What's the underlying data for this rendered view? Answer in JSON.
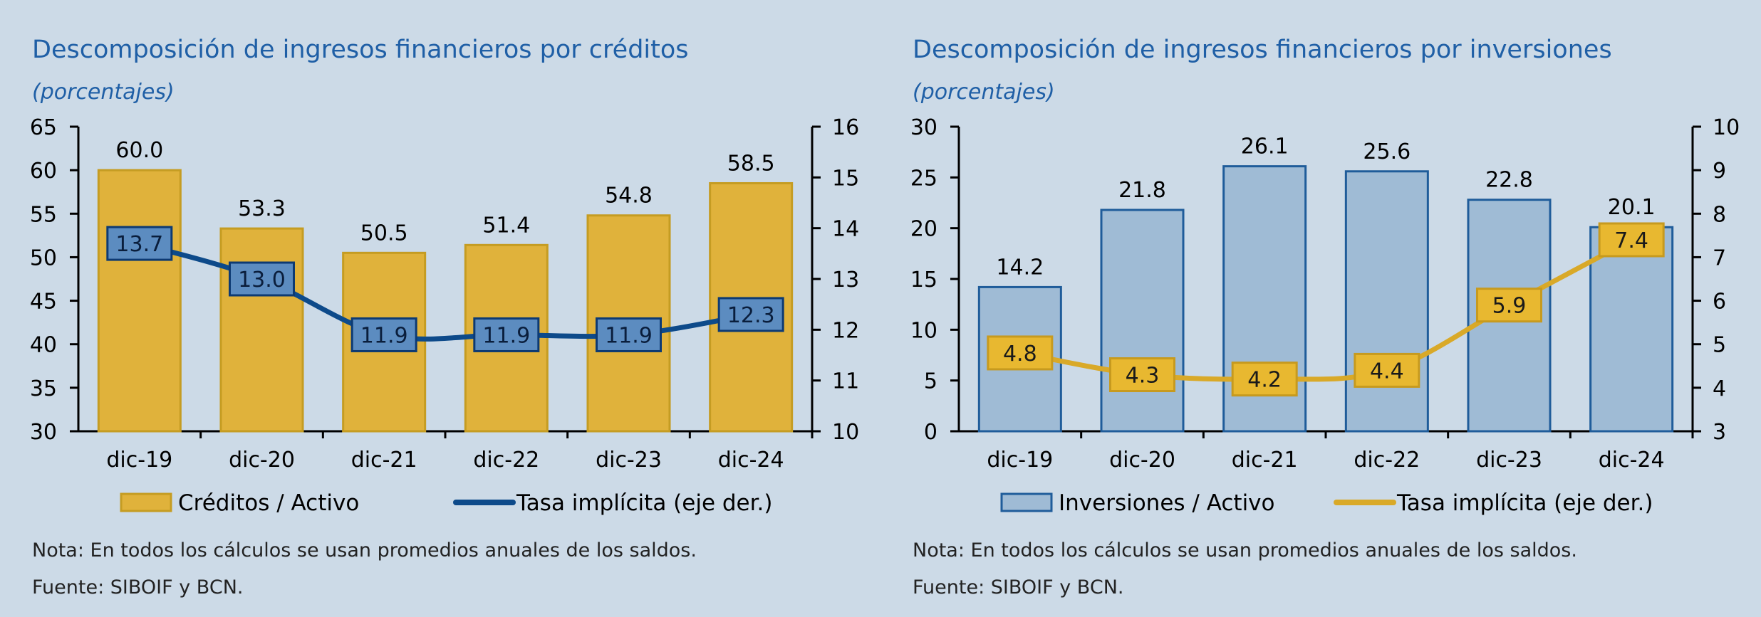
{
  "charts": [
    {
      "title": "Descomposición de ingresos financieros por créditos",
      "subtitle": "(porcentajes)",
      "note": "Nota: En todos los cálculos se usan promedios anuales de los saldos.",
      "source": "Fuente: SIBOIF y BCN.",
      "bar_color": "#e0b23b",
      "bar_stroke": "#c59c22",
      "line_color": "#0d4a8a",
      "label_box_fill": "#5c8cc0",
      "label_box_stroke": "#0d3a73",
      "label_text_color": "#0a1e3c"
    },
    {
      "title": "Descomposición de ingresos financieros por inversiones",
      "subtitle": "(porcentajes)",
      "note": "Nota: En todos los cálculos se usan promedios anuales de los saldos.",
      "source": "Fuente: SIBOIF y BCN.",
      "bar_color": "#9fbbd5",
      "bar_stroke": "#1f5c9a",
      "line_color": "#d9a928",
      "label_box_fill": "#e8b830",
      "label_box_stroke": "#c79a1e",
      "label_text_color": "#1a1a1a"
    }
  ],
  "chart_data": [
    {
      "type": "bar",
      "categories": [
        "dic-19",
        "dic-20",
        "dic-21",
        "dic-22",
        "dic-23",
        "dic-24"
      ],
      "series": [
        {
          "name": "Créditos / Activo",
          "type": "bar",
          "axis": "left",
          "values": [
            60.0,
            53.3,
            50.5,
            51.4,
            54.8,
            58.5
          ]
        },
        {
          "name": "Tasa implícita (eje der.)",
          "type": "line",
          "axis": "right",
          "values": [
            13.7,
            13.0,
            11.9,
            11.9,
            11.9,
            12.3
          ]
        }
      ],
      "ylim": [
        30,
        65
      ],
      "yticks": [
        30,
        35,
        40,
        45,
        50,
        55,
        60,
        65
      ],
      "y2lim": [
        10,
        16
      ],
      "y2ticks": [
        10,
        11,
        12,
        13,
        14,
        15,
        16
      ],
      "legend_position": "bottom"
    },
    {
      "type": "bar",
      "categories": [
        "dic-19",
        "dic-20",
        "dic-21",
        "dic-22",
        "dic-23",
        "dic-24"
      ],
      "series": [
        {
          "name": "Inversiones / Activo",
          "type": "bar",
          "axis": "left",
          "values": [
            14.2,
            21.8,
            26.1,
            25.6,
            22.8,
            20.1
          ]
        },
        {
          "name": "Tasa implícita (eje der.)",
          "type": "line",
          "axis": "right",
          "values": [
            4.8,
            4.3,
            4.2,
            4.4,
            5.9,
            7.4
          ]
        }
      ],
      "ylim": [
        0,
        30
      ],
      "yticks": [
        0,
        5,
        10,
        15,
        20,
        25,
        30
      ],
      "y2lim": [
        3,
        10
      ],
      "y2ticks": [
        3,
        4,
        5,
        6,
        7,
        8,
        9,
        10
      ],
      "legend_position": "bottom"
    }
  ]
}
